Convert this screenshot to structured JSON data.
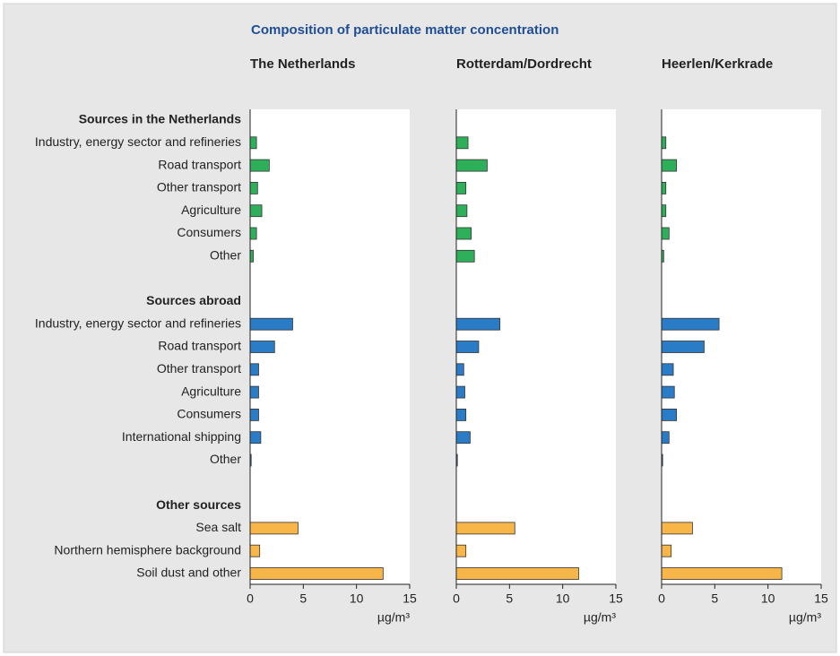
{
  "chart_data": {
    "type": "bar",
    "orientation": "horizontal",
    "title": "Composition of particulate matter concentration",
    "xlabel": "µg/m³",
    "xlim": [
      0,
      15
    ],
    "xticks": [
      0,
      5,
      10,
      15
    ],
    "groups": [
      {
        "name": "Sources in the Netherlands",
        "color": "#2eb05a",
        "categories": [
          "Industry, energy sector and refineries",
          "Road transport",
          "Other transport",
          "Agriculture",
          "Consumers",
          "Other"
        ]
      },
      {
        "name": "Sources abroad",
        "color": "#2b7cc6",
        "categories": [
          "Industry, energy sector and refineries",
          "Road transport",
          "Other transport",
          "Agriculture",
          "Consumers",
          "International shipping",
          "Other"
        ]
      },
      {
        "name": "Other sources",
        "color": "#f8b548",
        "categories": [
          "Sea salt",
          "Northern hemisphere background",
          "Soil dust and other"
        ]
      }
    ],
    "panels": [
      {
        "title": "The Netherlands",
        "values": [
          [
            0.6,
            1.8,
            0.7,
            1.1,
            0.6,
            0.3
          ],
          [
            4.0,
            2.3,
            0.8,
            0.8,
            0.8,
            1.0,
            0.1
          ],
          [
            4.5,
            0.9,
            12.5
          ]
        ]
      },
      {
        "title": "Rotterdam/Dordrecht",
        "values": [
          [
            1.1,
            2.9,
            0.9,
            1.0,
            1.4,
            1.7
          ],
          [
            4.1,
            2.1,
            0.7,
            0.8,
            0.9,
            1.3,
            0.1
          ],
          [
            5.5,
            0.9,
            11.5
          ]
        ]
      },
      {
        "title": "Heerlen/Kerkrade",
        "values": [
          [
            0.4,
            1.4,
            0.4,
            0.4,
            0.7,
            0.2
          ],
          [
            5.4,
            4.0,
            1.1,
            1.2,
            1.4,
            0.7,
            0.1
          ],
          [
            2.9,
            0.9,
            11.3
          ]
        ]
      }
    ]
  }
}
